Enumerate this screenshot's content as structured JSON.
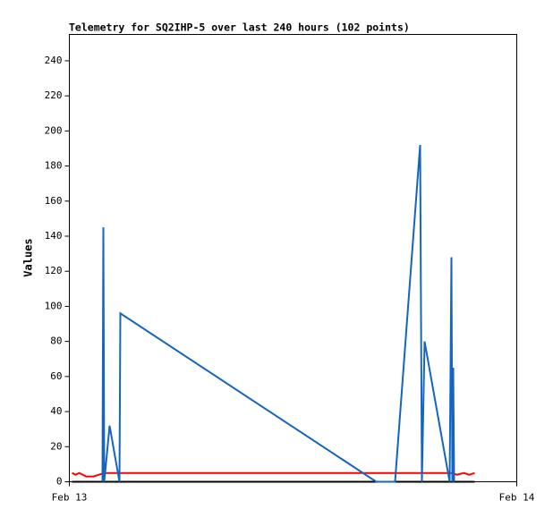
{
  "chart_data": {
    "type": "line",
    "title": "Telemetry for SQ2IHP-5 over last 240 hours (102 points)",
    "y_label": "Values",
    "xlim": [
      0,
      1
    ],
    "xticks": [
      {
        "value": 0,
        "label": "Feb 13"
      },
      {
        "value": 1,
        "label": "Feb 14"
      }
    ],
    "ylim": [
      0,
      255
    ],
    "yticks": [
      0,
      20,
      40,
      60,
      80,
      100,
      120,
      140,
      160,
      180,
      200,
      220,
      240
    ],
    "series": [
      {
        "color": "#000000",
        "x": [
          0.006,
          0.906
        ],
        "values": [
          0,
          0
        ]
      },
      {
        "color": "#ff0000",
        "x": [
          0.006,
          0.014,
          0.022,
          0.03,
          0.038,
          0.054,
          0.066,
          0.078,
          0.686,
          0.856,
          0.866,
          0.882,
          0.894,
          0.906
        ],
        "values": [
          5,
          4,
          5,
          4,
          3,
          3,
          4,
          5,
          5,
          5,
          4,
          5,
          4,
          5
        ]
      },
      {
        "color": "#1565c0",
        "x": [
          0.074,
          0.076,
          0.078,
          0.09,
          0.112,
          0.114,
          0.686,
          0.728,
          0.784,
          0.788,
          0.794,
          0.85,
          0.854,
          0.856,
          0.858,
          0.86
        ],
        "values": [
          0,
          145,
          0,
          32,
          0,
          96,
          0,
          0,
          192,
          0,
          80,
          0,
          128,
          0,
          65,
          0
        ]
      }
    ]
  }
}
